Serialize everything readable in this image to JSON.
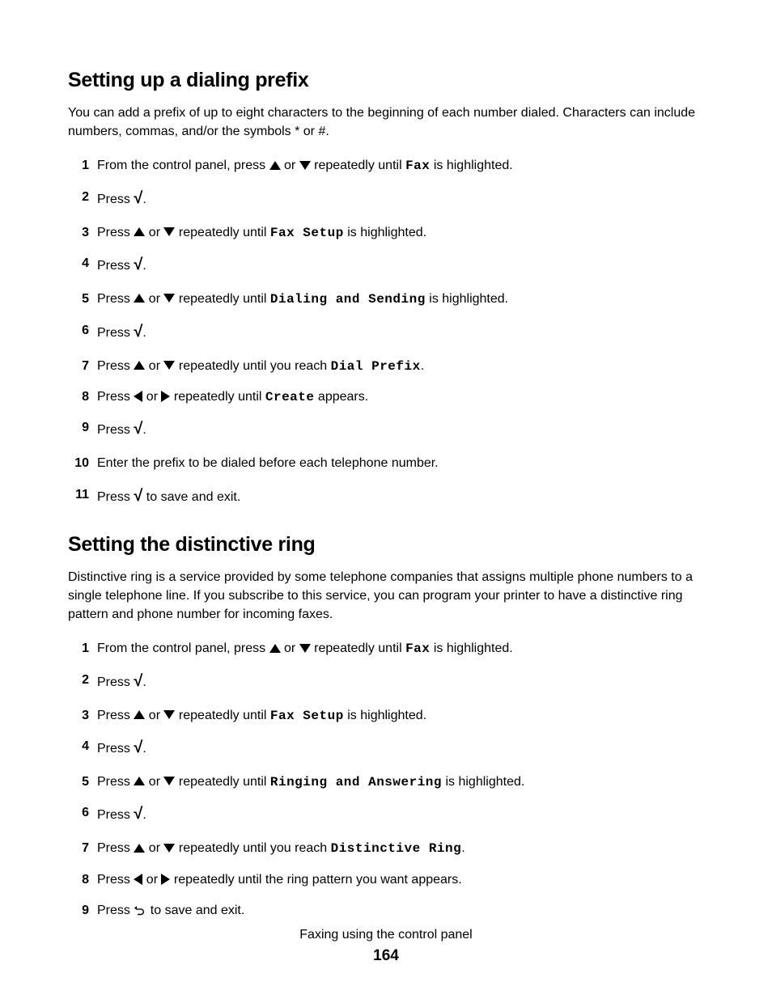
{
  "section1": {
    "title": "Setting up a dialing prefix",
    "intro": "You can add a prefix of up to eight characters to the beginning of each number dialed. Characters can include numbers, commas, and/or the symbols * or #.",
    "steps": [
      {
        "pre": "From the control panel, press ",
        "icon1": "up",
        "mid": " or ",
        "icon2": "down",
        "post1": " repeatedly until ",
        "mono": "Fax",
        "post2": " is highlighted."
      },
      {
        "pre": "Press ",
        "icon1": "check",
        "post2": "."
      },
      {
        "pre": "Press ",
        "icon1": "up",
        "mid": " or ",
        "icon2": "down",
        "post1": " repeatedly until ",
        "mono": "Fax Setup",
        "post2": " is highlighted."
      },
      {
        "pre": "Press ",
        "icon1": "check",
        "post2": "."
      },
      {
        "pre": "Press ",
        "icon1": "up",
        "mid": " or ",
        "icon2": "down",
        "post1": " repeatedly until ",
        "mono": "Dialing and Sending",
        "post2": " is highlighted."
      },
      {
        "pre": "Press ",
        "icon1": "check",
        "post2": "."
      },
      {
        "pre": "Press ",
        "icon1": "up",
        "mid": " or ",
        "icon2": "down",
        "post1": " repeatedly until you reach ",
        "mono": "Dial Prefix",
        "post2": "."
      },
      {
        "pre": "Press ",
        "icon1": "left",
        "mid": " or ",
        "icon2": "right",
        "post1": " repeatedly until ",
        "mono": "Create",
        "post2": " appears."
      },
      {
        "pre": "Press ",
        "icon1": "check",
        "post2": "."
      },
      {
        "pre": "Enter the prefix to be dialed before each telephone number."
      },
      {
        "pre": "Press ",
        "icon1": "check",
        "post2": " to save and exit."
      }
    ]
  },
  "section2": {
    "title": "Setting the distinctive ring",
    "intro": "Distinctive ring is a service provided by some telephone companies that assigns multiple phone numbers to a single telephone line. If you subscribe to this service, you can program your printer to have a distinctive ring pattern and phone number for incoming faxes.",
    "steps": [
      {
        "pre": "From the control panel, press ",
        "icon1": "up",
        "mid": " or ",
        "icon2": "down",
        "post1": " repeatedly until ",
        "mono": "Fax",
        "post2": " is highlighted."
      },
      {
        "pre": "Press ",
        "icon1": "check",
        "post2": "."
      },
      {
        "pre": "Press ",
        "icon1": "up",
        "mid": " or ",
        "icon2": "down",
        "post1": " repeatedly until ",
        "mono": "Fax Setup",
        "post2": " is highlighted."
      },
      {
        "pre": "Press ",
        "icon1": "check",
        "post2": "."
      },
      {
        "pre": "Press ",
        "icon1": "up",
        "mid": " or ",
        "icon2": "down",
        "post1": " repeatedly until ",
        "mono": "Ringing and Answering",
        "post2": " is highlighted."
      },
      {
        "pre": "Press ",
        "icon1": "check",
        "post2": "."
      },
      {
        "pre": "Press ",
        "icon1": "up",
        "mid": " or ",
        "icon2": "down",
        "post1": " repeatedly until you reach ",
        "mono": "Distinctive Ring",
        "post2": "."
      },
      {
        "pre": "Press ",
        "icon1": "left",
        "mid": " or ",
        "icon2": "right",
        "post1": " repeatedly until the ring pattern you want appears."
      },
      {
        "pre": "Press ",
        "icon1": "back",
        "post2": " to save and exit."
      }
    ]
  },
  "footer": {
    "text": "Faxing using the control panel",
    "page": "164"
  }
}
